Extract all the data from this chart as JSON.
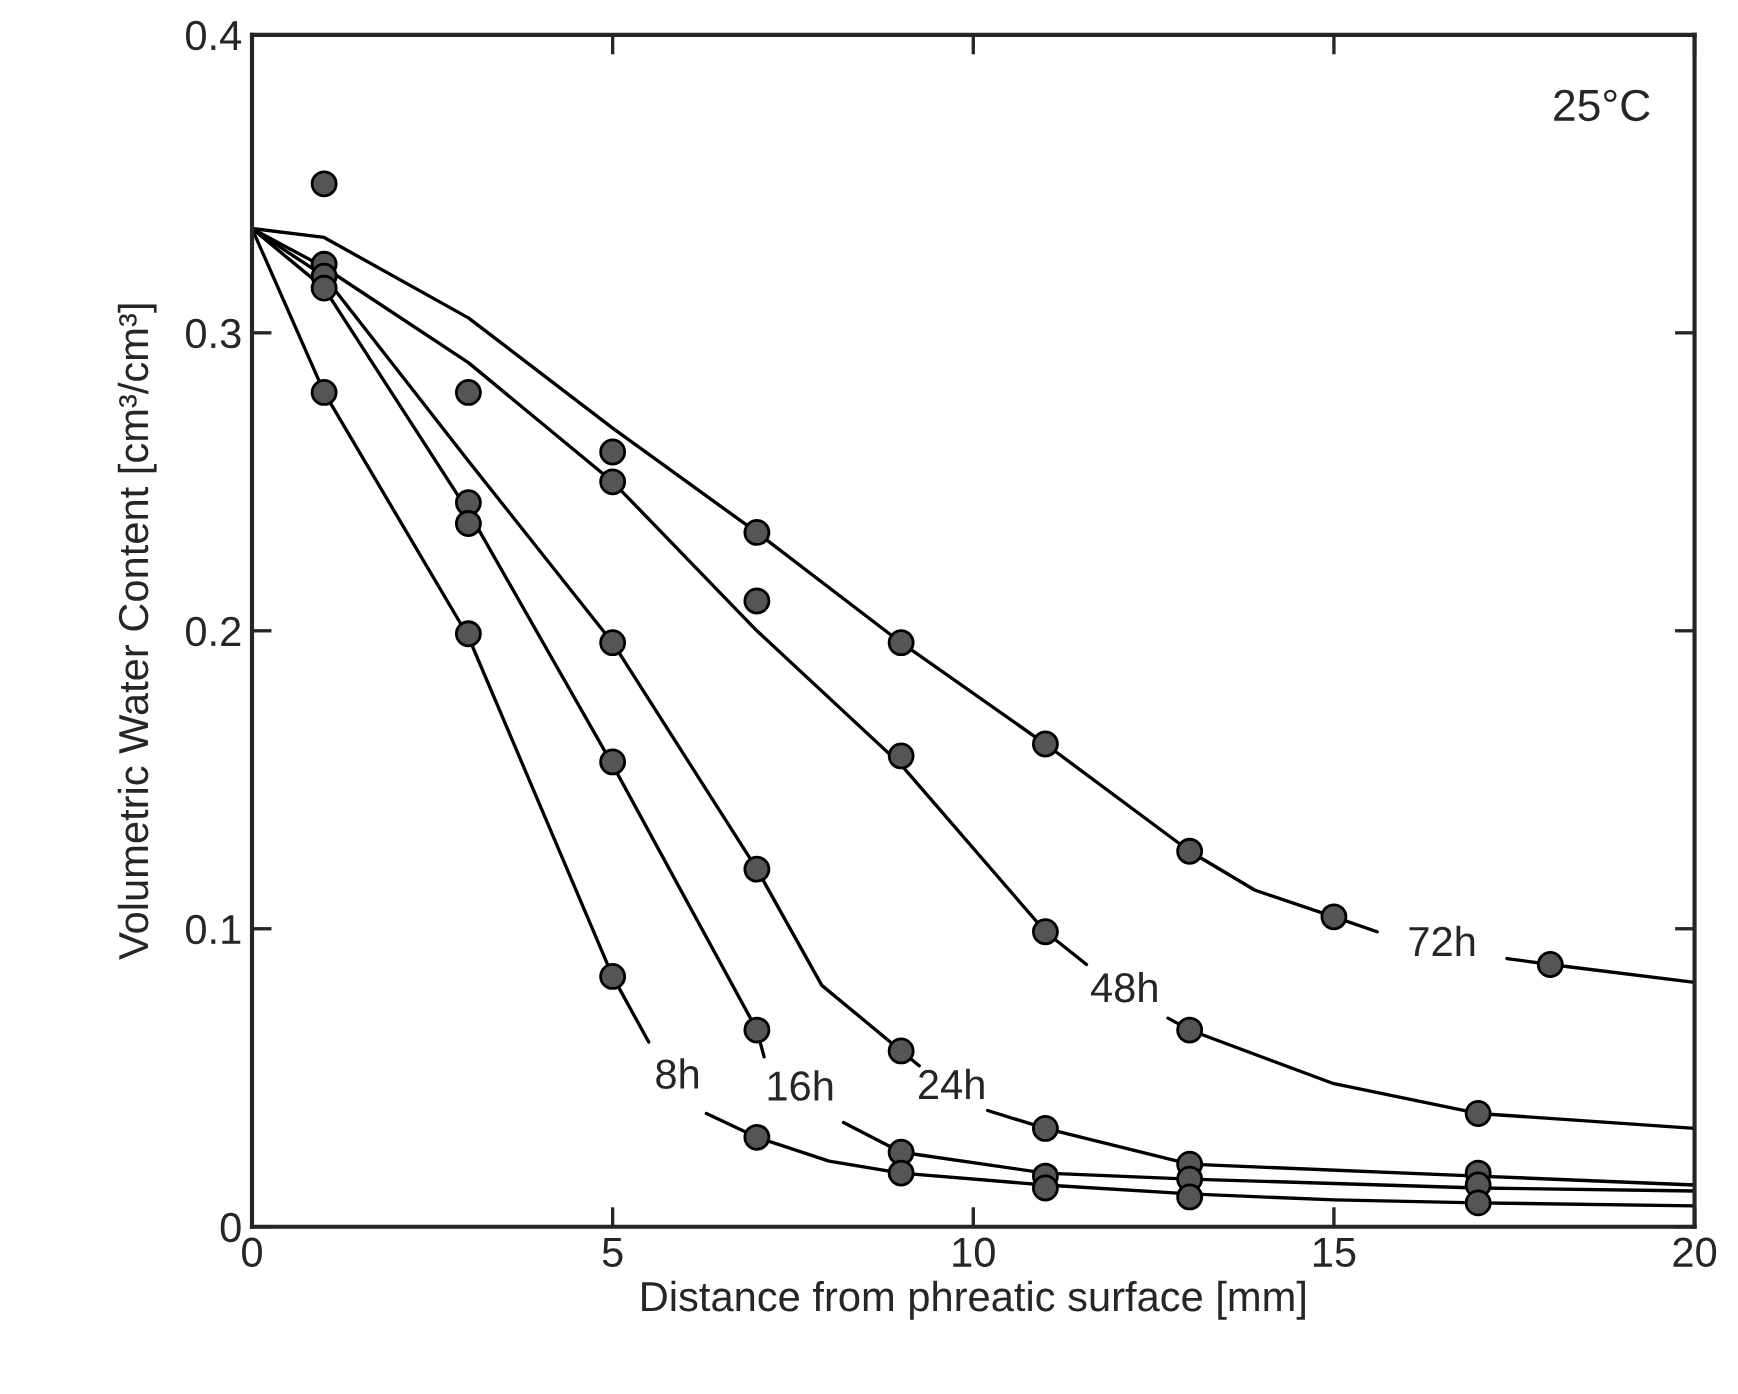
{
  "chart_data": {
    "type": "line",
    "xlabel": "Distance from phreatic surface [mm]",
    "ylabel": "Volumetric Water Content [cm³/cm³]",
    "xlim": [
      0,
      20
    ],
    "ylim": [
      0,
      0.4
    ],
    "xticks": [
      0,
      5,
      10,
      15,
      20
    ],
    "yticks": [
      0,
      0.1,
      0.2,
      0.3,
      0.4
    ],
    "grid": false,
    "legend": false,
    "series": [
      {
        "name": "8h",
        "color": "#000000",
        "marker": "none",
        "x": [
          0,
          1,
          3,
          5,
          5.5,
          5.9,
          6.3,
          7,
          8,
          9,
          11,
          13,
          15,
          17,
          20
        ],
        "values": [
          0.335,
          0.28,
          0.198,
          0.084,
          0.062,
          null,
          0.038,
          0.03,
          0.022,
          0.018,
          0.014,
          0.011,
          0.009,
          0.008,
          0.007
        ]
      },
      {
        "name": "16h",
        "color": "#000000",
        "marker": "none",
        "x": [
          0,
          1,
          3,
          5,
          7,
          7.1,
          7.6,
          8.2,
          9,
          11,
          13,
          17,
          20
        ],
        "values": [
          0.335,
          0.315,
          0.24,
          0.155,
          0.066,
          0.057,
          null,
          0.035,
          0.025,
          0.018,
          0.016,
          0.013,
          0.012
        ]
      },
      {
        "name": "24h",
        "color": "#000000",
        "marker": "none",
        "x": [
          0,
          1,
          3,
          5,
          7,
          7.9,
          9,
          9.25,
          9.7,
          10.2,
          11,
          13,
          17,
          20
        ],
        "values": [
          0.335,
          0.319,
          0.257,
          0.196,
          0.12,
          0.081,
          0.059,
          0.054,
          null,
          0.039,
          0.033,
          0.021,
          0.017,
          0.014
        ]
      },
      {
        "name": "48h",
        "color": "#000000",
        "marker": "none",
        "x": [
          0,
          1,
          3,
          5,
          7,
          9,
          11,
          11.57,
          12.1,
          12.7,
          13,
          15,
          17,
          20
        ],
        "values": [
          0.335,
          0.322,
          0.29,
          0.25,
          0.2,
          0.155,
          0.099,
          0.088,
          null,
          0.07,
          0.066,
          0.048,
          0.038,
          0.033
        ]
      },
      {
        "name": "72h",
        "color": "#000000",
        "marker": "none",
        "x": [
          0,
          1,
          3,
          5,
          7,
          9,
          11,
          13,
          13.9,
          15,
          15.6,
          16.5,
          17.4,
          18,
          20
        ],
        "values": [
          0.335,
          0.332,
          0.305,
          0.268,
          0.233,
          0.196,
          0.162,
          0.126,
          0.113,
          0.104,
          0.099,
          null,
          0.09,
          0.088,
          0.082
        ]
      },
      {
        "type": "scatter",
        "color": "#555555",
        "marker": "circle",
        "x": [
          1,
          1,
          1,
          1,
          1,
          3,
          3,
          3,
          3,
          5,
          5,
          5,
          5,
          5,
          7,
          7,
          7,
          7,
          7,
          9,
          9,
          9,
          9,
          9,
          11,
          11,
          11,
          11,
          11,
          13,
          13,
          13,
          13,
          13,
          15,
          17,
          17,
          17,
          17,
          18
        ],
        "values": [
          0.35,
          0.323,
          0.319,
          0.315,
          0.28,
          0.28,
          0.243,
          0.236,
          0.199,
          0.26,
          0.25,
          0.196,
          0.156,
          0.084,
          0.233,
          0.21,
          0.12,
          0.066,
          0.03,
          0.196,
          0.158,
          0.059,
          0.025,
          0.018,
          0.162,
          0.099,
          0.033,
          0.017,
          0.013,
          0.126,
          0.066,
          0.021,
          0.016,
          0.01,
          0.104,
          0.038,
          0.018,
          0.014,
          0.008,
          0.088
        ]
      }
    ],
    "annotations": [
      "25°C"
    ]
  }
}
